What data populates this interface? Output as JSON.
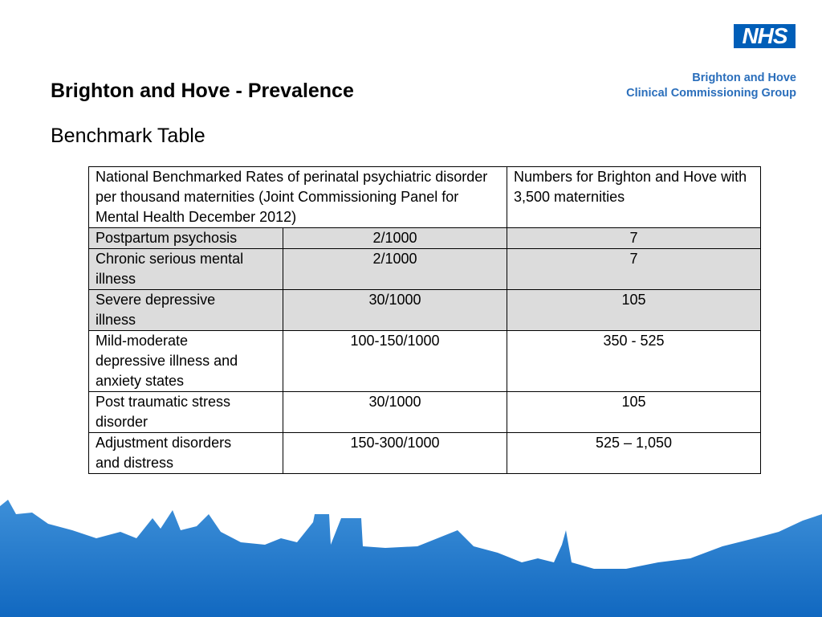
{
  "logo": {
    "badge": "NHS",
    "line1": "Brighton and Hove",
    "line2": "Clinical Commissioning Group"
  },
  "header": {
    "title": "Brighton and Hove - Prevalence",
    "subtitle": "Benchmark Table"
  },
  "table": {
    "header": [
      "National Benchmarked Rates of perinatal psychiatric disorder per thousand maternities (Joint Commissioning Panel for Mental Health December 2012)",
      "Numbers for Brighton and Hove with 3,500 maternities"
    ],
    "rows": [
      [
        "Postpartum psychosis",
        "2/1000",
        "7"
      ],
      [
        "Chronic serious mental illness",
        "2/1000",
        "7"
      ],
      [
        "Severe depressive illness",
        "30/1000",
        "105"
      ],
      [
        "Mild-moderate depressive illness and anxiety states",
        "100-150/1000",
        "350 - 525"
      ],
      [
        "Post traumatic stress disorder",
        "30/1000",
        "105"
      ],
      [
        "Adjustment disorders and distress",
        "150-300/1000",
        "525 – 1,050"
      ]
    ]
  }
}
